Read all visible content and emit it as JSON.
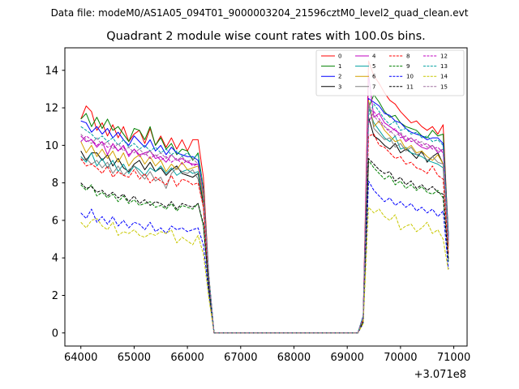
{
  "chart_data": {
    "type": "line",
    "suptitle": "Data file: modeM0/AS1A05_094T01_9000003204_21596cztM0_level2_quad_clean.evt",
    "title": "Quadrant 2 module wise count rates with 100.0s bins.",
    "xlabel": "",
    "ylabel": "",
    "x_offset_label": "+3.071e8",
    "xlim": [
      63700,
      71250
    ],
    "ylim": [
      -0.7,
      15.2
    ],
    "xticks": [
      64000,
      65000,
      66000,
      67000,
      68000,
      69000,
      70000,
      71000
    ],
    "yticks": [
      0,
      2,
      4,
      6,
      8,
      10,
      12,
      14
    ],
    "xtick_labels": [
      "64000",
      "65000",
      "66000",
      "67000",
      "68000",
      "69000",
      "70000",
      "71000"
    ],
    "ytick_labels": [
      "0",
      "2",
      "4",
      "6",
      "8",
      "10",
      "12",
      "14"
    ],
    "legend_location": "upper-right",
    "x": [
      64000,
      64100,
      64200,
      64300,
      64400,
      64500,
      64600,
      64700,
      64800,
      64900,
      65000,
      65100,
      65200,
      65300,
      65400,
      65500,
      65600,
      65700,
      65800,
      65900,
      66000,
      66100,
      66200,
      66300,
      66400,
      66500,
      66600,
      66700,
      66800,
      66900,
      67000,
      67100,
      67200,
      67300,
      67400,
      67500,
      67600,
      67700,
      67800,
      67900,
      68000,
      68100,
      68200,
      68300,
      68400,
      68500,
      68600,
      68700,
      68800,
      68900,
      69000,
      69100,
      69200,
      69300,
      69400,
      69500,
      69600,
      69700,
      69800,
      69900,
      70000,
      70100,
      70200,
      70300,
      70400,
      70500,
      70600,
      70700,
      70800,
      70900
    ],
    "series": [
      {
        "name": "0",
        "color": "#ff0000",
        "dash": "solid",
        "values": [
          11.4,
          12.1,
          11.8,
          10.8,
          11.2,
          10.5,
          11.1,
          10.4,
          11.0,
          10.2,
          10.6,
          10.8,
          10.1,
          10.9,
          10.0,
          10.5,
          9.9,
          10.4,
          9.8,
          10.3,
          9.7,
          10.3,
          10.3,
          8.3,
          3.1,
          0,
          0,
          0,
          0,
          0,
          0,
          0,
          0,
          0,
          0,
          0,
          0,
          0,
          0,
          0,
          0,
          0,
          0,
          0,
          0,
          0,
          0,
          0,
          0,
          0,
          0,
          0,
          0,
          0.9,
          14.5,
          13.7,
          13.3,
          12.8,
          12.4,
          12.2,
          11.8,
          11.5,
          11.2,
          11.3,
          11.0,
          10.8,
          11.0,
          10.6,
          11.1,
          5.0
        ]
      },
      {
        "name": "1",
        "color": "#008000",
        "dash": "solid",
        "values": [
          11.4,
          11.7,
          11.0,
          11.5,
          10.9,
          11.4,
          10.8,
          11.0,
          10.6,
          10.2,
          10.9,
          10.8,
          10.3,
          11.0,
          10.0,
          10.4,
          9.8,
          10.1,
          9.5,
          9.8,
          9.7,
          9.2,
          9.6,
          7.7,
          3.1,
          0,
          0,
          0,
          0,
          0,
          0,
          0,
          0,
          0,
          0,
          0,
          0,
          0,
          0,
          0,
          0,
          0,
          0,
          0,
          0,
          0,
          0,
          0,
          0,
          0,
          0,
          0,
          0,
          0.9,
          12.0,
          12.7,
          12.3,
          11.8,
          11.5,
          11.6,
          11.2,
          11.0,
          10.9,
          10.8,
          10.5,
          10.4,
          10.8,
          10.5,
          10.6,
          5.2
        ]
      },
      {
        "name": "2",
        "color": "#0000ff",
        "dash": "solid",
        "values": [
          11.3,
          11.2,
          10.7,
          11.0,
          10.6,
          10.9,
          10.4,
          10.7,
          10.3,
          10.0,
          10.5,
          10.2,
          9.9,
          10.3,
          9.7,
          10.0,
          9.5,
          9.9,
          9.6,
          9.5,
          9.4,
          9.4,
          9.2,
          7.5,
          3.0,
          0,
          0,
          0,
          0,
          0,
          0,
          0,
          0,
          0,
          0,
          0,
          0,
          0,
          0,
          0,
          0,
          0,
          0,
          0,
          0,
          0,
          0,
          0,
          0,
          0,
          0,
          0,
          0,
          0.9,
          12.5,
          12.3,
          12.1,
          11.7,
          11.6,
          11.3,
          11.2,
          10.9,
          10.7,
          10.6,
          10.5,
          10.3,
          10.4,
          10.4,
          10.1,
          5.1
        ]
      },
      {
        "name": "3",
        "color": "#000000",
        "dash": "solid",
        "values": [
          9.7,
          9.2,
          9.6,
          9.6,
          9.2,
          9.5,
          8.9,
          9.3,
          8.8,
          8.6,
          9.0,
          9.2,
          8.7,
          9.1,
          8.6,
          8.8,
          8.4,
          8.7,
          8.9,
          8.5,
          8.4,
          8.3,
          8.5,
          6.9,
          2.9,
          0,
          0,
          0,
          0,
          0,
          0,
          0,
          0,
          0,
          0,
          0,
          0,
          0,
          0,
          0,
          0,
          0,
          0,
          0,
          0,
          0,
          0,
          0,
          0,
          0,
          0,
          0,
          0,
          0.8,
          11.5,
          10.5,
          10.3,
          10.0,
          9.8,
          10.1,
          9.6,
          9.8,
          9.6,
          9.3,
          9.7,
          9.1,
          9.4,
          9.6,
          9.0,
          4.9
        ]
      },
      {
        "name": "4",
        "color": "#c000c0",
        "dash": "solid",
        "values": [
          10.5,
          10.2,
          10.3,
          9.9,
          10.2,
          9.5,
          10.1,
          9.7,
          10.0,
          9.4,
          9.8,
          9.5,
          9.6,
          9.7,
          9.3,
          9.4,
          9.1,
          9.5,
          9.2,
          9.3,
          9.1,
          9.0,
          9.0,
          7.4,
          2.9,
          0,
          0,
          0,
          0,
          0,
          0,
          0,
          0,
          0,
          0,
          0,
          0,
          0,
          0,
          0,
          0,
          0,
          0,
          0,
          0,
          0,
          0,
          0,
          0,
          0,
          0,
          0,
          0,
          0.8,
          13.8,
          11.5,
          11.7,
          11.2,
          11.0,
          10.8,
          10.6,
          10.2,
          10.4,
          10.1,
          9.9,
          9.8,
          10.0,
          9.6,
          9.8,
          4.9
        ]
      },
      {
        "name": "5",
        "color": "#00a0a0",
        "dash": "solid",
        "values": [
          9.4,
          9.1,
          9.6,
          8.9,
          9.3,
          8.8,
          9.2,
          8.6,
          9.0,
          8.5,
          8.9,
          8.7,
          8.4,
          8.8,
          8.6,
          8.9,
          8.5,
          8.8,
          8.4,
          8.6,
          8.7,
          8.5,
          8.6,
          7.1,
          2.8,
          0,
          0,
          0,
          0,
          0,
          0,
          0,
          0,
          0,
          0,
          0,
          0,
          0,
          0,
          0,
          0,
          0,
          0,
          0,
          0,
          0,
          0,
          0,
          0,
          0,
          0,
          0,
          0,
          0.8,
          12.0,
          11.2,
          10.8,
          10.4,
          10.2,
          10.5,
          9.8,
          9.9,
          9.6,
          9.5,
          9.4,
          9.2,
          9.1,
          9.0,
          8.8,
          4.6
        ]
      },
      {
        "name": "6",
        "color": "#d4a000",
        "dash": "solid",
        "values": [
          10.2,
          9.6,
          10.0,
          9.4,
          9.8,
          9.3,
          9.7,
          9.1,
          9.6,
          8.9,
          9.3,
          9.5,
          9.0,
          9.4,
          8.9,
          9.2,
          8.6,
          9.0,
          8.7,
          9.1,
          8.7,
          8.8,
          8.9,
          7.2,
          2.9,
          0,
          0,
          0,
          0,
          0,
          0,
          0,
          0,
          0,
          0,
          0,
          0,
          0,
          0,
          0,
          0,
          0,
          0,
          0,
          0,
          0,
          0,
          0,
          0,
          0,
          0,
          0,
          0,
          0.8,
          12.4,
          11.0,
          11.3,
          10.8,
          10.5,
          10.2,
          10.3,
          9.8,
          10.0,
          9.6,
          9.7,
          9.4,
          9.2,
          9.5,
          9.0,
          4.7
        ]
      },
      {
        "name": "7",
        "color": "#808080",
        "dash": "solid",
        "values": [
          9.2,
          9.3,
          9.0,
          9.2,
          8.8,
          9.1,
          8.5,
          8.9,
          8.4,
          8.7,
          8.9,
          8.5,
          8.2,
          8.6,
          8.1,
          8.3,
          7.7,
          8.5,
          8.8,
          8.6,
          8.5,
          8.7,
          8.2,
          6.7,
          2.7,
          0,
          0,
          0,
          0,
          0,
          0,
          0,
          0,
          0,
          0,
          0,
          0,
          0,
          0,
          0,
          0,
          0,
          0,
          0,
          0,
          0,
          0,
          0,
          0,
          0,
          0,
          0,
          0,
          0.8,
          12.3,
          10.9,
          10.6,
          10.3,
          10.4,
          9.9,
          10.1,
          9.7,
          9.9,
          9.5,
          9.6,
          9.2,
          9.4,
          9.1,
          9.0,
          4.6
        ]
      },
      {
        "name": "8",
        "color": "#ff0000",
        "dash": "dashed",
        "values": [
          9.3,
          8.9,
          9.0,
          8.8,
          8.5,
          8.9,
          8.3,
          8.6,
          8.4,
          8.3,
          8.7,
          8.2,
          8.5,
          8.0,
          8.3,
          8.1,
          7.9,
          8.4,
          7.8,
          8.2,
          8.1,
          7.9,
          8.0,
          6.7,
          2.7,
          0,
          0,
          0,
          0,
          0,
          0,
          0,
          0,
          0,
          0,
          0,
          0,
          0,
          0,
          0,
          0,
          0,
          0,
          0,
          0,
          0,
          0,
          0,
          0,
          0,
          0,
          0,
          0,
          0.7,
          10.5,
          10.6,
          10.0,
          9.9,
          9.6,
          9.3,
          9.4,
          9.0,
          9.1,
          8.8,
          8.7,
          8.5,
          8.9,
          8.4,
          8.2,
          4.2
        ]
      },
      {
        "name": "9",
        "color": "#008000",
        "dash": "dashed",
        "values": [
          7.9,
          7.6,
          7.9,
          7.3,
          7.5,
          7.2,
          7.4,
          7.0,
          7.3,
          6.9,
          7.1,
          6.8,
          6.9,
          7.0,
          6.7,
          6.8,
          6.6,
          6.9,
          6.5,
          6.8,
          6.7,
          6.6,
          6.9,
          5.7,
          2.4,
          0,
          0,
          0,
          0,
          0,
          0,
          0,
          0,
          0,
          0,
          0,
          0,
          0,
          0,
          0,
          0,
          0,
          0,
          0,
          0,
          0,
          0,
          0,
          0,
          0,
          0,
          0,
          0,
          0.6,
          9.2,
          8.8,
          8.5,
          8.2,
          8.4,
          7.9,
          8.1,
          7.7,
          7.9,
          7.6,
          7.8,
          7.5,
          7.4,
          7.6,
          7.2,
          3.8
        ]
      },
      {
        "name": "10",
        "color": "#0000ff",
        "dash": "dashed",
        "values": [
          6.4,
          6.1,
          6.6,
          5.9,
          6.2,
          5.8,
          6.2,
          5.7,
          6.0,
          5.6,
          5.9,
          5.8,
          5.5,
          5.9,
          5.4,
          5.6,
          5.3,
          5.7,
          5.5,
          5.6,
          5.4,
          5.5,
          5.6,
          4.7,
          2.1,
          0,
          0,
          0,
          0,
          0,
          0,
          0,
          0,
          0,
          0,
          0,
          0,
          0,
          0,
          0,
          0,
          0,
          0,
          0,
          0,
          0,
          0,
          0,
          0,
          0,
          0,
          0,
          0,
          0.5,
          8.1,
          7.6,
          7.3,
          7.0,
          7.2,
          6.8,
          7.0,
          6.7,
          6.9,
          6.5,
          6.7,
          6.4,
          6.6,
          6.2,
          6.5,
          3.4
        ]
      },
      {
        "name": "11",
        "color": "#000000",
        "dash": "dashed",
        "values": [
          8.0,
          7.7,
          7.8,
          7.5,
          7.6,
          7.3,
          7.5,
          7.2,
          7.4,
          7.0,
          7.3,
          6.9,
          7.1,
          6.8,
          7.0,
          6.9,
          6.7,
          7.0,
          6.6,
          6.9,
          6.8,
          6.7,
          6.9,
          5.8,
          2.5,
          0,
          0,
          0,
          0,
          0,
          0,
          0,
          0,
          0,
          0,
          0,
          0,
          0,
          0,
          0,
          0,
          0,
          0,
          0,
          0,
          0,
          0,
          0,
          0,
          0,
          0,
          0,
          0,
          0.6,
          9.3,
          9.0,
          8.7,
          8.5,
          8.6,
          8.1,
          8.3,
          7.9,
          8.1,
          7.7,
          7.9,
          7.6,
          7.8,
          7.5,
          7.4,
          3.9
        ]
      },
      {
        "name": "12",
        "color": "#c000c0",
        "dash": "dashed",
        "values": [
          10.2,
          10.5,
          10.3,
          10.0,
          10.2,
          9.9,
          10.0,
          9.7,
          9.9,
          9.5,
          9.8,
          9.4,
          9.6,
          9.3,
          9.5,
          9.2,
          9.4,
          9.1,
          9.3,
          9.0,
          9.2,
          8.9,
          9.0,
          7.4,
          3.0,
          0,
          0,
          0,
          0,
          0,
          0,
          0,
          0,
          0,
          0,
          0,
          0,
          0,
          0,
          0,
          0,
          0,
          0,
          0,
          0,
          0,
          0,
          0,
          0,
          0,
          0,
          0,
          0,
          0.8,
          11.2,
          11.8,
          11.4,
          11.0,
          10.7,
          10.9,
          10.4,
          10.5,
          10.2,
          10.3,
          10.0,
          10.1,
          9.8,
          9.9,
          9.6,
          4.9
        ]
      },
      {
        "name": "13",
        "color": "#00a0a0",
        "dash": "dashed",
        "values": [
          11.0,
          10.8,
          10.6,
          10.3,
          10.5,
          10.2,
          10.4,
          10.0,
          10.3,
          9.9,
          10.1,
          9.8,
          10.0,
          9.7,
          9.9,
          9.6,
          9.8,
          9.5,
          9.7,
          9.4,
          9.6,
          9.3,
          9.5,
          7.7,
          3.1,
          0,
          0,
          0,
          0,
          0,
          0,
          0,
          0,
          0,
          0,
          0,
          0,
          0,
          0,
          0,
          0,
          0,
          0,
          0,
          0,
          0,
          0,
          0,
          0,
          0,
          0,
          0,
          0,
          0.9,
          11.6,
          12.2,
          11.8,
          11.4,
          11.1,
          11.3,
          10.8,
          10.9,
          10.6,
          10.7,
          10.4,
          10.5,
          10.2,
          10.3,
          10.0,
          5.0
        ]
      },
      {
        "name": "14",
        "color": "#c8c800",
        "dash": "dashed",
        "values": [
          5.9,
          5.6,
          6.0,
          6.1,
          5.7,
          5.5,
          5.9,
          5.2,
          5.4,
          5.3,
          5.5,
          5.2,
          5.1,
          5.3,
          5.2,
          5.4,
          5.3,
          5.5,
          4.8,
          5.1,
          4.9,
          4.7,
          5.2,
          4.2,
          1.9,
          0,
          0,
          0,
          0,
          0,
          0,
          0,
          0,
          0,
          0,
          0,
          0,
          0,
          0,
          0,
          0,
          0,
          0,
          0,
          0,
          0,
          0,
          0,
          0,
          0,
          0,
          0,
          0,
          0.5,
          6.7,
          6.4,
          6.6,
          6.2,
          6.0,
          6.3,
          5.5,
          5.7,
          5.8,
          5.4,
          5.6,
          5.9,
          5.3,
          5.5,
          5.0,
          3.3
        ]
      },
      {
        "name": "15",
        "color": "#a070a0",
        "dash": "dashed",
        "values": [
          10.6,
          10.3,
          10.1,
          10.4,
          10.0,
          10.2,
          9.8,
          10.1,
          9.7,
          9.9,
          9.6,
          9.8,
          9.5,
          9.7,
          9.4,
          9.6,
          9.3,
          9.5,
          9.2,
          9.4,
          9.1,
          9.3,
          9.0,
          7.5,
          3.0,
          0,
          0,
          0,
          0,
          0,
          0,
          0,
          0,
          0,
          0,
          0,
          0,
          0,
          0,
          0,
          0,
          0,
          0,
          0,
          0,
          0,
          0,
          0,
          0,
          0,
          0,
          0,
          0,
          0.8,
          12.2,
          11.6,
          11.2,
          11.0,
          10.8,
          10.5,
          10.7,
          10.3,
          10.4,
          10.1,
          10.2,
          9.9,
          10.0,
          9.7,
          9.8,
          4.9
        ]
      }
    ]
  }
}
